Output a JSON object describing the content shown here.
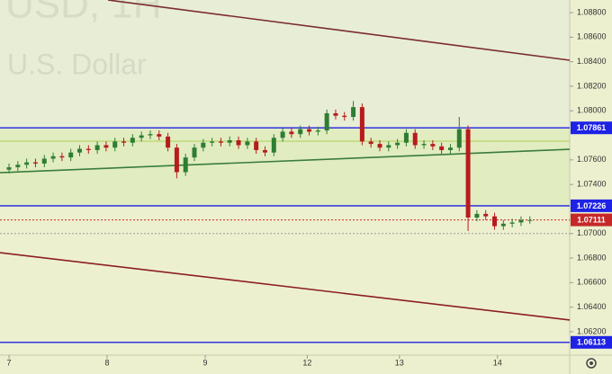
{
  "chart_data": {
    "type": "candlestick",
    "symbol": "USD, 1H",
    "watermark": "U.S. Dollar",
    "xlim": [
      -0.092,
      5.716
    ],
    "ylim": [
      1.06009,
      1.08903
    ],
    "xticks": [
      {
        "value": 0,
        "label": "7"
      },
      {
        "value": 1,
        "label": "8"
      },
      {
        "value": 2,
        "label": "9"
      },
      {
        "value": 3.04,
        "label": "12"
      },
      {
        "value": 3.98,
        "label": "13"
      },
      {
        "value": 4.98,
        "label": "14"
      }
    ],
    "yticks": [
      {
        "value": 1.088,
        "label": "1.08800"
      },
      {
        "value": 1.086,
        "label": "1.08600"
      },
      {
        "value": 1.084,
        "label": "1.08400"
      },
      {
        "value": 1.082,
        "label": "1.08200"
      },
      {
        "value": 1.08,
        "label": "1.08000"
      },
      {
        "value": 1.076,
        "label": "1.07600"
      },
      {
        "value": 1.074,
        "label": "1.07400"
      },
      {
        "value": 1.07,
        "label": "1.07000"
      },
      {
        "value": 1.068,
        "label": "1.06800"
      },
      {
        "value": 1.066,
        "label": "1.06600"
      },
      {
        "value": 1.064,
        "label": "1.06400"
      },
      {
        "value": 1.062,
        "label": "1.06200"
      }
    ],
    "up_color": "#2e7d32",
    "down_color": "#b71c1c",
    "x": [
      0,
      0.09,
      0.18,
      0.27,
      0.36,
      0.45,
      0.54,
      0.63,
      0.72,
      0.81,
      0.9,
      0.99,
      1.08,
      1.17,
      1.26,
      1.35,
      1.44,
      1.53,
      1.62,
      1.71,
      1.8,
      1.89,
      1.98,
      2.07,
      2.16,
      2.25,
      2.34,
      2.43,
      2.52,
      2.61,
      2.7,
      2.79,
      2.88,
      2.97,
      3.06,
      3.15,
      3.24,
      3.33,
      3.42,
      3.51,
      3.6,
      3.69,
      3.78,
      3.87,
      3.96,
      4.05,
      4.14,
      4.23,
      4.32,
      4.41,
      4.5,
      4.59,
      4.68,
      4.77,
      4.86,
      4.95,
      5.04,
      5.13,
      5.22,
      5.31
    ],
    "open": [
      1.0752,
      1.0754,
      1.0756,
      1.0758,
      1.0757,
      1.0761,
      1.0763,
      1.0762,
      1.0766,
      1.0769,
      1.0768,
      1.0772,
      1.077,
      1.0775,
      1.0774,
      1.0778,
      1.078,
      1.0781,
      1.0779,
      1.077,
      1.075,
      1.0762,
      1.077,
      1.0774,
      1.0775,
      1.0774,
      1.0776,
      1.0772,
      1.0775,
      1.0768,
      1.0766,
      1.0778,
      1.0783,
      1.0781,
      1.0785,
      1.0783,
      1.0784,
      1.0798,
      1.0796,
      1.0795,
      1.0803,
      1.0775,
      1.0773,
      1.077,
      1.0772,
      1.0774,
      1.0782,
      1.0772,
      1.0773,
      1.0771,
      1.0768,
      1.077,
      1.0785,
      1.0713,
      1.0716,
      1.0714,
      1.0706,
      1.0708,
      1.0709,
      1.0711
    ],
    "high": [
      1.0757,
      1.0759,
      1.0761,
      1.0761,
      1.0764,
      1.0766,
      1.0766,
      1.0769,
      1.0772,
      1.0772,
      1.0775,
      1.0775,
      1.0778,
      1.0778,
      1.0781,
      1.0783,
      1.0784,
      1.0784,
      1.0782,
      1.0773,
      1.0765,
      1.0773,
      1.0777,
      1.0778,
      1.0778,
      1.0779,
      1.0779,
      1.0778,
      1.0778,
      1.0771,
      1.0781,
      1.0786,
      1.0786,
      1.0788,
      1.0788,
      1.0787,
      1.0801,
      1.0801,
      1.0799,
      1.0808,
      1.0806,
      1.0778,
      1.0776,
      1.0775,
      1.0777,
      1.0785,
      1.0785,
      1.0776,
      1.0776,
      1.0774,
      1.0773,
      1.0795,
      1.0788,
      1.0719,
      1.0719,
      1.0717,
      1.0711,
      1.0712,
      1.0714,
      1.0714
    ],
    "low": [
      1.0749,
      1.0751,
      1.0753,
      1.0754,
      1.0754,
      1.0758,
      1.0759,
      1.0759,
      1.0763,
      1.0765,
      1.0765,
      1.0767,
      1.0767,
      1.0771,
      1.0771,
      1.0775,
      1.0777,
      1.0776,
      1.0767,
      1.0745,
      1.0747,
      1.0759,
      1.0767,
      1.0771,
      1.0771,
      1.0771,
      1.0769,
      1.0769,
      1.0765,
      1.0763,
      1.0763,
      1.0775,
      1.0778,
      1.0778,
      1.078,
      1.078,
      1.0781,
      1.0793,
      1.0792,
      1.0792,
      1.0772,
      1.077,
      1.0767,
      1.0767,
      1.0769,
      1.0771,
      1.0769,
      1.0769,
      1.0768,
      1.0765,
      1.0765,
      1.0767,
      1.0702,
      1.071,
      1.0711,
      1.0703,
      1.0703,
      1.0705,
      1.0706,
      1.0708
    ],
    "close": [
      1.0754,
      1.0756,
      1.0758,
      1.0757,
      1.0761,
      1.0763,
      1.0762,
      1.0766,
      1.0769,
      1.0768,
      1.0772,
      1.077,
      1.0775,
      1.0774,
      1.0778,
      1.078,
      1.0781,
      1.0779,
      1.077,
      1.075,
      1.0762,
      1.077,
      1.0774,
      1.0775,
      1.0774,
      1.0776,
      1.0772,
      1.0775,
      1.0768,
      1.0766,
      1.0778,
      1.0783,
      1.0781,
      1.0785,
      1.0783,
      1.0784,
      1.0798,
      1.0796,
      1.0795,
      1.0803,
      1.0775,
      1.0773,
      1.077,
      1.0772,
      1.0774,
      1.0782,
      1.0772,
      1.0773,
      1.0771,
      1.0768,
      1.077,
      1.0785,
      1.0713,
      1.0716,
      1.0714,
      1.0706,
      1.0708,
      1.0709,
      1.0711,
      1.0711
    ],
    "levels": [
      {
        "value": 1.07861,
        "color": "#1e22e6",
        "labeled": true
      },
      {
        "value": 1.07226,
        "color": "#1e22e6",
        "labeled": true
      },
      {
        "value": 1.07111,
        "color": "#c62828",
        "labeled": true,
        "dashed": true
      },
      {
        "value": 1.06113,
        "color": "#1e22e6",
        "labeled": true
      },
      {
        "value": 1.07752,
        "color": "#b9da70",
        "labeled": false
      },
      {
        "value": 1.07,
        "color": "#999999",
        "labeled": false,
        "dashed": true
      }
    ],
    "lines": [
      {
        "x": [
          1.009,
          5.716
        ],
        "y": [
          1.08903,
          1.08412
        ],
        "color": "#7b2c2c"
      },
      {
        "x": [
          -0.092,
          5.716
        ],
        "y": [
          1.06844,
          1.06295
        ],
        "color": "#8b1f1f"
      },
      {
        "x": [
          -0.092,
          5.716
        ],
        "y": [
          1.07496,
          1.07686
        ],
        "color": "#3a7d3a"
      }
    ]
  }
}
